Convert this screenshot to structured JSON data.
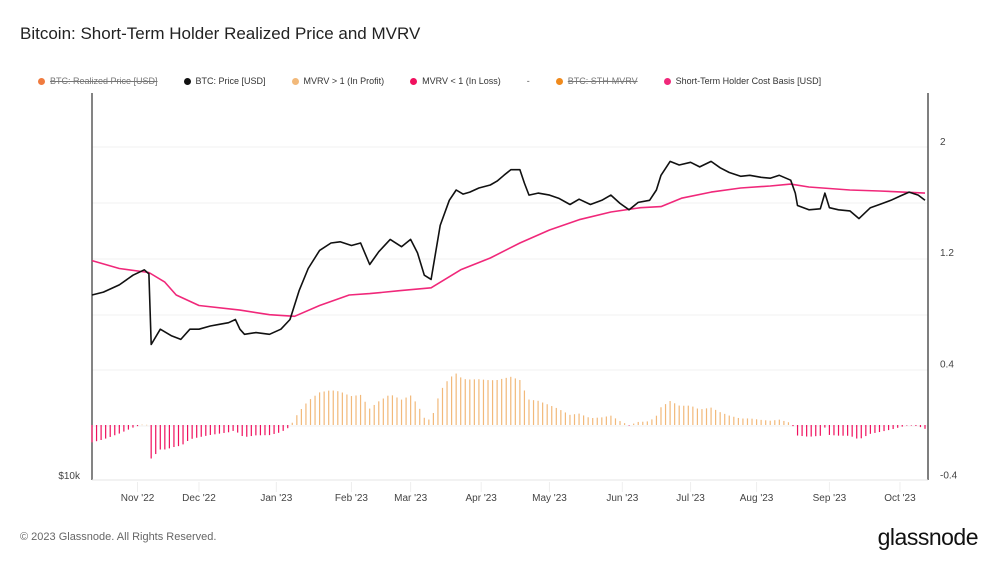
{
  "title": "Bitcoin: Short-Term Holder Realized Price and MVRV",
  "legend": [
    {
      "label": "BTC: Realized Price [USD]",
      "color": "#f07b3f",
      "disabled": true
    },
    {
      "label": "BTC: Price [USD]",
      "color": "#111111",
      "disabled": false
    },
    {
      "label": "MVRV > 1 (In Profit)",
      "color": "#f2b97a",
      "disabled": false
    },
    {
      "label": "MVRV < 1 (In Loss)",
      "color": "#f0105e",
      "disabled": false
    },
    {
      "label": "-",
      "separator": true
    },
    {
      "label": "BTC: STH-MVRV",
      "color": "#f08a1c",
      "disabled": true
    },
    {
      "label": "Short-Term Holder Cost Basis [USD]",
      "color": "#f0287a",
      "disabled": false
    }
  ],
  "footer": {
    "copyright": "© 2023 Glassnode. All Rights Reserved.",
    "logo": "glassnode"
  },
  "chart_data": {
    "type": "line",
    "title": "Bitcoin: Short-Term Holder Realized Price and MVRV",
    "x_unit": "days since start of visible range",
    "x_range": [
      0,
      366
    ],
    "x_ticks": [
      {
        "label": "Nov '22",
        "day": 20
      },
      {
        "label": "Dec '22",
        "day": 47
      },
      {
        "label": "Jan '23",
        "day": 81
      },
      {
        "label": "Feb '23",
        "day": 114
      },
      {
        "label": "Mar '23",
        "day": 140
      },
      {
        "label": "Apr '23",
        "day": 171
      },
      {
        "label": "May '23",
        "day": 201
      },
      {
        "label": "Jun '23",
        "day": 233
      },
      {
        "label": "Jul '23",
        "day": 263
      },
      {
        "label": "Aug '23",
        "day": 292
      },
      {
        "label": "Sep '23",
        "day": 324
      },
      {
        "label": "Oct '23",
        "day": 355
      }
    ],
    "y_left": {
      "scale": "log",
      "range": [
        10000,
        31800
      ],
      "ticks": [
        {
          "label": "$10k",
          "value": 10000
        }
      ]
    },
    "y_right": {
      "range": [
        -0.4,
        2.4
      ],
      "ticks": [
        {
          "label": "2",
          "value": 2
        },
        {
          "label": "1.2",
          "value": 1.2
        },
        {
          "label": "0.4",
          "value": 0.4
        },
        {
          "label": "-0.4",
          "value": -0.4
        }
      ]
    },
    "series": [
      {
        "name": "BTC: Price [USD]",
        "axis": "left",
        "color": "#111111",
        "points": [
          [
            0,
            19100
          ],
          [
            5,
            19300
          ],
          [
            12,
            19800
          ],
          [
            18,
            20500
          ],
          [
            23,
            20900
          ],
          [
            25,
            20600
          ],
          [
            26,
            16000
          ],
          [
            30,
            16900
          ],
          [
            35,
            16500
          ],
          [
            39,
            16300
          ],
          [
            43,
            16900
          ],
          [
            47,
            16900
          ],
          [
            52,
            17100
          ],
          [
            56,
            17200
          ],
          [
            60,
            17300
          ],
          [
            63,
            17500
          ],
          [
            65,
            16900
          ],
          [
            67,
            16600
          ],
          [
            72,
            16700
          ],
          [
            78,
            16600
          ],
          [
            83,
            16900
          ],
          [
            87,
            17500
          ],
          [
            91,
            19400
          ],
          [
            95,
            21000
          ],
          [
            100,
            22400
          ],
          [
            105,
            23000
          ],
          [
            109,
            23100
          ],
          [
            114,
            22800
          ],
          [
            118,
            23000
          ],
          [
            122,
            21300
          ],
          [
            126,
            22300
          ],
          [
            131,
            23300
          ],
          [
            136,
            22700
          ],
          [
            140,
            23300
          ],
          [
            143,
            22200
          ],
          [
            146,
            20500
          ],
          [
            149,
            20200
          ],
          [
            153,
            24500
          ],
          [
            157,
            26800
          ],
          [
            160,
            27800
          ],
          [
            163,
            27400
          ],
          [
            166,
            27600
          ],
          [
            170,
            28000
          ],
          [
            175,
            28300
          ],
          [
            178,
            28700
          ],
          [
            181,
            29300
          ],
          [
            184,
            29900
          ],
          [
            188,
            29900
          ],
          [
            190,
            28500
          ],
          [
            192,
            27300
          ],
          [
            196,
            27500
          ],
          [
            201,
            27300
          ],
          [
            205,
            27000
          ],
          [
            210,
            26400
          ],
          [
            214,
            26900
          ],
          [
            219,
            26400
          ],
          [
            224,
            26800
          ],
          [
            228,
            27300
          ],
          [
            232,
            26500
          ],
          [
            236,
            25900
          ],
          [
            240,
            26600
          ],
          [
            245,
            26800
          ],
          [
            248,
            27800
          ],
          [
            250,
            29300
          ],
          [
            254,
            30800
          ],
          [
            258,
            30400
          ],
          [
            263,
            30700
          ],
          [
            267,
            30200
          ],
          [
            272,
            30800
          ],
          [
            276,
            30100
          ],
          [
            280,
            29600
          ],
          [
            285,
            29200
          ],
          [
            289,
            29300
          ],
          [
            294,
            29100
          ],
          [
            298,
            29000
          ],
          [
            302,
            29300
          ],
          [
            307,
            28800
          ],
          [
            309,
            27500
          ],
          [
            310,
            26300
          ],
          [
            315,
            25900
          ],
          [
            320,
            26000
          ],
          [
            322,
            27500
          ],
          [
            324,
            26100
          ],
          [
            328,
            25900
          ],
          [
            333,
            25800
          ],
          [
            337,
            25100
          ],
          [
            342,
            26100
          ],
          [
            346,
            26400
          ],
          [
            351,
            26800
          ],
          [
            355,
            27200
          ],
          [
            359,
            27600
          ],
          [
            363,
            27300
          ],
          [
            366,
            26800
          ]
        ]
      },
      {
        "name": "Short-Term Holder Cost Basis [USD]",
        "axis": "left",
        "color": "#f0287a",
        "points": [
          [
            0,
            21600
          ],
          [
            12,
            21000
          ],
          [
            25,
            20700
          ],
          [
            32,
            20000
          ],
          [
            37,
            19100
          ],
          [
            47,
            18400
          ],
          [
            65,
            18100
          ],
          [
            78,
            17800
          ],
          [
            89,
            17700
          ],
          [
            100,
            18400
          ],
          [
            113,
            19100
          ],
          [
            122,
            19200
          ],
          [
            135,
            19400
          ],
          [
            149,
            19600
          ],
          [
            162,
            20900
          ],
          [
            175,
            21800
          ],
          [
            188,
            23000
          ],
          [
            201,
            24100
          ],
          [
            214,
            25000
          ],
          [
            228,
            25700
          ],
          [
            241,
            26100
          ],
          [
            250,
            26200
          ],
          [
            259,
            27000
          ],
          [
            272,
            27600
          ],
          [
            285,
            28000
          ],
          [
            298,
            28200
          ],
          [
            307,
            28400
          ],
          [
            315,
            28100
          ],
          [
            333,
            27800
          ],
          [
            346,
            27700
          ],
          [
            366,
            27500
          ]
        ]
      }
    ],
    "bars": {
      "name": "BTC: STH-MVRV (bars, MVRV - 1)",
      "axis": "right",
      "derived_from": "price / cost basis",
      "profit_color": "#f2b97a",
      "loss_color": "#f0105e"
    }
  }
}
